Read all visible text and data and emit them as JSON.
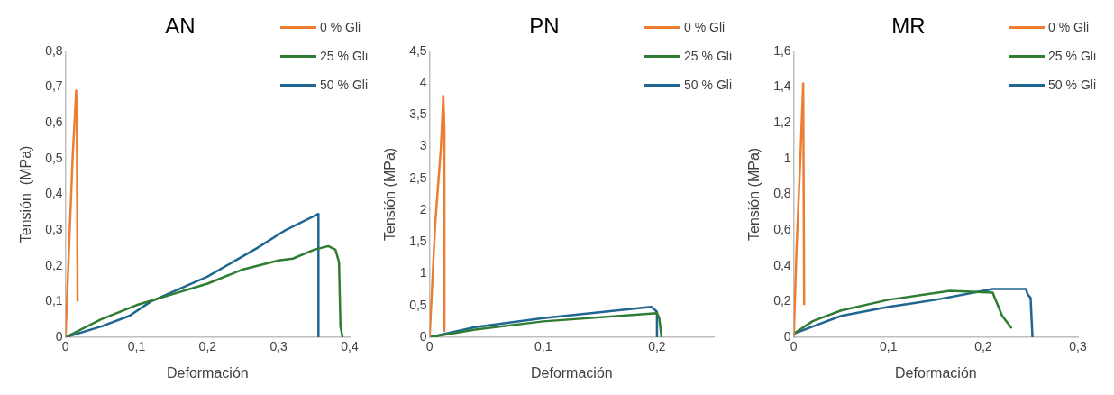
{
  "chart_data": [
    {
      "type": "line",
      "title": "AN",
      "xlabel": "Deformación",
      "ylabel": "Tensión  (MPa)",
      "xlim": [
        0,
        0.4
      ],
      "xticks": [
        {
          "value": 0,
          "label": "0"
        },
        {
          "value": 0.1,
          "label": "0,1"
        },
        {
          "value": 0.2,
          "label": "0,2"
        },
        {
          "value": 0.3,
          "label": "0,3"
        },
        {
          "value": 0.4,
          "label": "0,4"
        }
      ],
      "ylim": [
        0,
        0.8
      ],
      "yticks": [
        0,
        {
          "value": 0.1,
          "label": "0,1"
        },
        {
          "value": 0.2,
          "label": "0,2"
        },
        {
          "value": 0.3,
          "label": "0,3"
        },
        {
          "value": 0.4,
          "label": "0,4"
        },
        {
          "value": 0.5,
          "label": "0,5"
        },
        {
          "value": 0.6,
          "label": "0,6"
        },
        {
          "value": 0.7,
          "label": "0,7"
        },
        {
          "value": 0.8,
          "label": "0,8"
        }
      ],
      "grid": false,
      "legend": "top right",
      "marker": "none",
      "series": [
        {
          "name": "0 % Gli",
          "color": "#ed7d31",
          "x": [
            0,
            0.01,
            0.015,
            0.016,
            0.017
          ],
          "values": [
            0,
            0.5,
            0.69,
            0.6,
            0.1
          ]
        },
        {
          "name": "25 % Gli",
          "color": "#2e7d32",
          "x": [
            0,
            0.05,
            0.1,
            0.15,
            0.2,
            0.25,
            0.3,
            0.32,
            0.35,
            0.37,
            0.38,
            0.385,
            0.387,
            0.39
          ],
          "values": [
            0,
            0.05,
            0.09,
            0.12,
            0.15,
            0.19,
            0.215,
            0.22,
            0.245,
            0.255,
            0.245,
            0.21,
            0.03,
            0
          ]
        },
        {
          "name": "50 % Gli",
          "color": "#1f6691",
          "x": [
            0,
            0.05,
            0.09,
            0.12,
            0.2,
            0.27,
            0.31,
            0.356,
            0.356
          ],
          "values": [
            0,
            0.03,
            0.06,
            0.1,
            0.17,
            0.25,
            0.3,
            0.345,
            0
          ]
        }
      ]
    },
    {
      "type": "line",
      "title": "PN",
      "xlabel": "Deformación",
      "ylabel": "Tensión (MPa)",
      "xlim": [
        0,
        0.25
      ],
      "xticks": [
        {
          "value": 0,
          "label": "0"
        },
        {
          "value": 0.1,
          "label": "0,1"
        },
        {
          "value": 0.2,
          "label": "0,2"
        }
      ],
      "ylim": [
        0,
        4.5
      ],
      "yticks": [
        0,
        {
          "value": 0.5,
          "label": "0,5"
        },
        1,
        {
          "value": 1.5,
          "label": "1,5"
        },
        2,
        {
          "value": 2.5,
          "label": "2,5"
        },
        3,
        {
          "value": 3.5,
          "label": "3,5"
        },
        4,
        {
          "value": 4.5,
          "label": "4,5"
        }
      ],
      "grid": false,
      "legend": "top right",
      "marker": "none",
      "series": [
        {
          "name": "0 % Gli",
          "color": "#ed7d31",
          "x": [
            0,
            0.005,
            0.01,
            0.012,
            0.013,
            0.013
          ],
          "values": [
            0,
            1.8,
            3,
            3.8,
            3.3,
            0.1
          ]
        },
        {
          "name": "25 % Gli",
          "color": "#2e7d32",
          "x": [
            0,
            0.04,
            0.1,
            0.2,
            0.202,
            0.204
          ],
          "values": [
            0,
            0.12,
            0.25,
            0.38,
            0.3,
            0
          ]
        },
        {
          "name": "50 % Gli",
          "color": "#1f6691",
          "x": [
            0,
            0.04,
            0.1,
            0.195,
            0.2,
            0.2
          ],
          "values": [
            0,
            0.16,
            0.3,
            0.48,
            0.4,
            0
          ]
        }
      ]
    },
    {
      "type": "line",
      "title": "MR",
      "xlabel": "Deformación",
      "ylabel": "Tensión (MPa)",
      "xlim": [
        0,
        0.3
      ],
      "xticks": [
        {
          "value": 0,
          "label": "0"
        },
        {
          "value": 0.1,
          "label": "0,1"
        },
        {
          "value": 0.2,
          "label": "0,2"
        },
        {
          "value": 0.3,
          "label": "0,3"
        }
      ],
      "ylim": [
        0,
        1.6
      ],
      "yticks": [
        0,
        {
          "value": 0.2,
          "label": "0,2"
        },
        {
          "value": 0.4,
          "label": "0,4"
        },
        {
          "value": 0.6,
          "label": "0,6"
        },
        {
          "value": 0.8,
          "label": "0,8"
        },
        1,
        {
          "value": 1.2,
          "label": "1,2"
        },
        {
          "value": 1.4,
          "label": "1,4"
        },
        {
          "value": 1.6,
          "label": "1,6"
        }
      ],
      "grid": false,
      "legend": "top right",
      "marker": "none",
      "series": [
        {
          "name": "0 % Gli",
          "color": "#ed7d31",
          "x": [
            0,
            0.003,
            0.007,
            0.01,
            0.011
          ],
          "values": [
            0,
            0.5,
            1,
            1.42,
            0.18
          ]
        },
        {
          "name": "25 % Gli",
          "color": "#2e7d32",
          "x": [
            0,
            0.02,
            0.05,
            0.1,
            0.165,
            0.21,
            0.22,
            0.23
          ],
          "values": [
            0.02,
            0.09,
            0.15,
            0.21,
            0.26,
            0.25,
            0.12,
            0.05
          ]
        },
        {
          "name": "50 % Gli",
          "color": "#1f6691",
          "x": [
            0,
            0.02,
            0.05,
            0.1,
            0.15,
            0.2,
            0.21,
            0.245,
            0.247,
            0.25,
            0.252
          ],
          "values": [
            0.02,
            0.06,
            0.12,
            0.17,
            0.21,
            0.26,
            0.27,
            0.27,
            0.24,
            0.22,
            0
          ]
        }
      ]
    }
  ]
}
